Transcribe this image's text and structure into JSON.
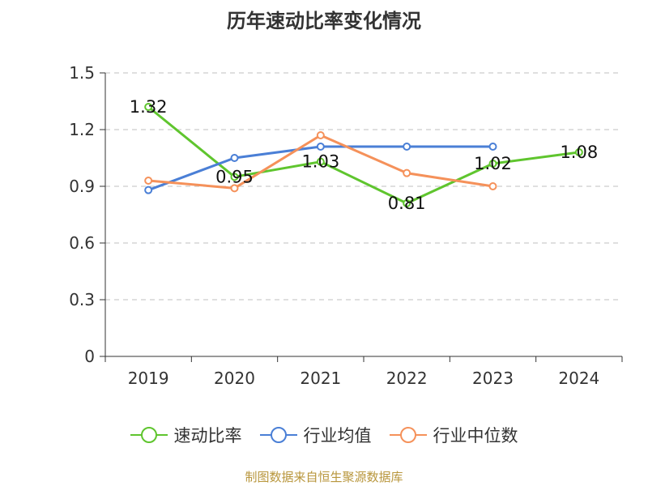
{
  "chart_data": {
    "type": "line",
    "title": "历年速动比率变化情况",
    "categories": [
      "2019",
      "2020",
      "2021",
      "2022",
      "2023",
      "2024"
    ],
    "ylim": [
      0,
      1.5
    ],
    "yticks": [
      "0",
      "0.3",
      "0.6",
      "0.9",
      "1.2",
      "1.5"
    ],
    "grid": true,
    "legend_position": "bottom",
    "series": [
      {
        "name": "速动比率",
        "color": "#5fc52e",
        "values": [
          1.32,
          0.95,
          1.03,
          0.81,
          1.02,
          1.08
        ],
        "labels": [
          "1.32",
          "0.95",
          "1.03",
          "0.81",
          "1.02",
          "1.08"
        ]
      },
      {
        "name": "行业均值",
        "color": "#4a7fd6",
        "values": [
          0.88,
          1.05,
          1.11,
          1.11,
          1.11,
          null
        ]
      },
      {
        "name": "行业中位数",
        "color": "#f5915a",
        "values": [
          0.93,
          0.89,
          1.17,
          0.97,
          0.9,
          null
        ]
      }
    ]
  },
  "source": "制图数据来自恒生聚源数据库"
}
